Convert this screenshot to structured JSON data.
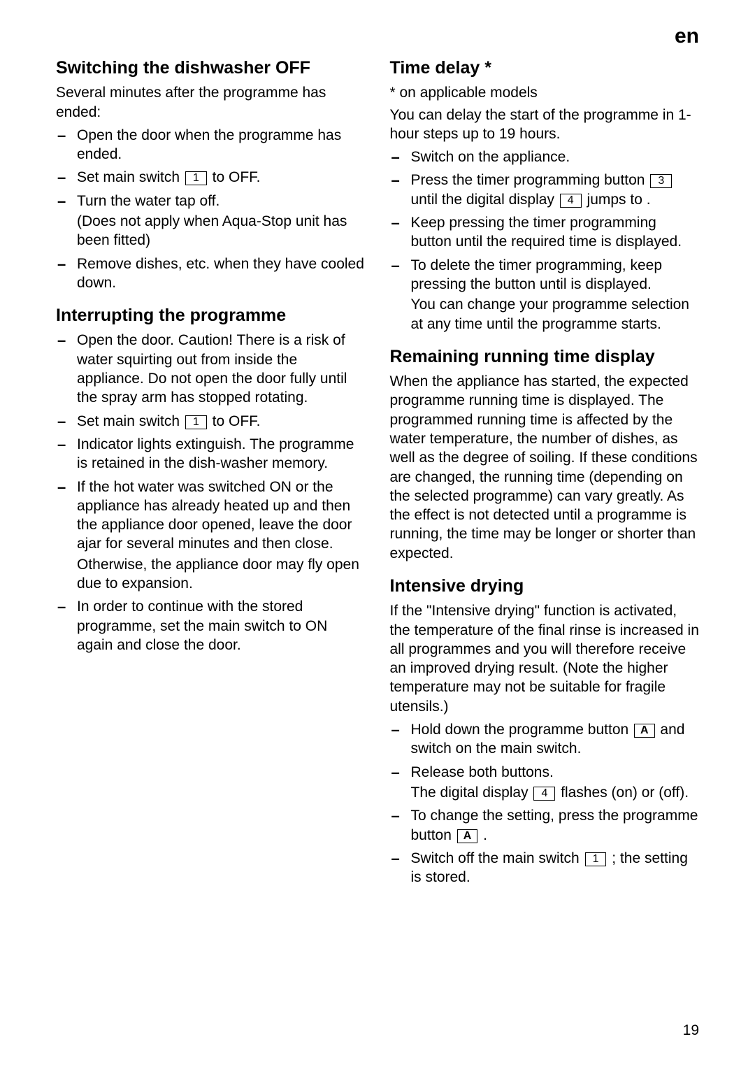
{
  "lang_label": "en",
  "page_number": "19",
  "left": {
    "h1": "Switching the dishwasher OFF",
    "p1": "Several minutes after the programme has ended:",
    "b1": "Open the door when the programme has ended.",
    "b2a": "Set main switch ",
    "b2key": "1",
    "b2b": " to OFF.",
    "b3": "Turn the water tap off.",
    "b3sub": "(Does not apply when Aqua-Stop unit has been fitted)",
    "b4": "Remove dishes, etc. when they have cooled down.",
    "h2": "Interrupting the programme",
    "c1": "Open the door. Caution! There is a risk of water squirting out from inside the appliance. Do not open the door fully until the spray arm has stopped rotating.",
    "c2a": "Set main switch ",
    "c2key": "1",
    "c2b": " to OFF.",
    "c3": "Indicator lights extinguish. The programme is retained in the dish-washer memory.",
    "c4": "If the hot water was switched ON or the appliance has already heated up and then the appliance door opened, leave the door ajar for several minutes and then close.",
    "c4sub": "Otherwise, the appliance door may fly open due to expansion.",
    "c5": "In order to continue with the stored programme, set the main switch to ON again and close the door."
  },
  "right": {
    "h1": "Time delay *",
    "note": "* on applicable models",
    "p1": "You can delay the start of the programme in 1-hour steps up to 19 hours.",
    "d1": "Switch on the appliance.",
    "d2a": "Press the timer programming button ",
    "d2key1": "3",
    "d2b": " until the digital display ",
    "d2key2": "4",
    "d2c": " jumps to     .",
    "d3": "Keep pressing the timer programming button until the required time is displayed.",
    "d4": "To delete the timer programming, keep pressing the button until          is displayed.",
    "d4sub": "You can change your programme selection at any time until the programme starts.",
    "h2": "Remaining running time display",
    "p2": "When the appliance has started, the expected programme running time is displayed. The programmed running time is affected by the water temperature, the number of dishes, as well as the degree of soiling. If these conditions are changed, the running time (depending on the selected programme) can vary greatly. As the effect is not detected until a programme is running, the time may be longer or shorter than expected.",
    "h3": "Intensive drying",
    "p3": "If the \"Intensive drying\" function is activated, the temperature of the final rinse is increased in all programmes and you will therefore receive an improved drying result. (Note the higher temperature may not be suitable for fragile utensils.)",
    "e1a": "Hold down the programme button ",
    "e1key": "A",
    "e1b": " and switch on the main switch.",
    "e2a": "Release both buttons.",
    "e2b_a": "The digital display ",
    "e2b_key": "4",
    "e2b_b": " flashes       (on) or       (off).",
    "e3a": "To change the setting, press the programme button ",
    "e3key": "A",
    "e3b": " .",
    "e4a": "Switch off the main switch ",
    "e4key": "1",
    "e4b": " ; the setting is stored."
  }
}
